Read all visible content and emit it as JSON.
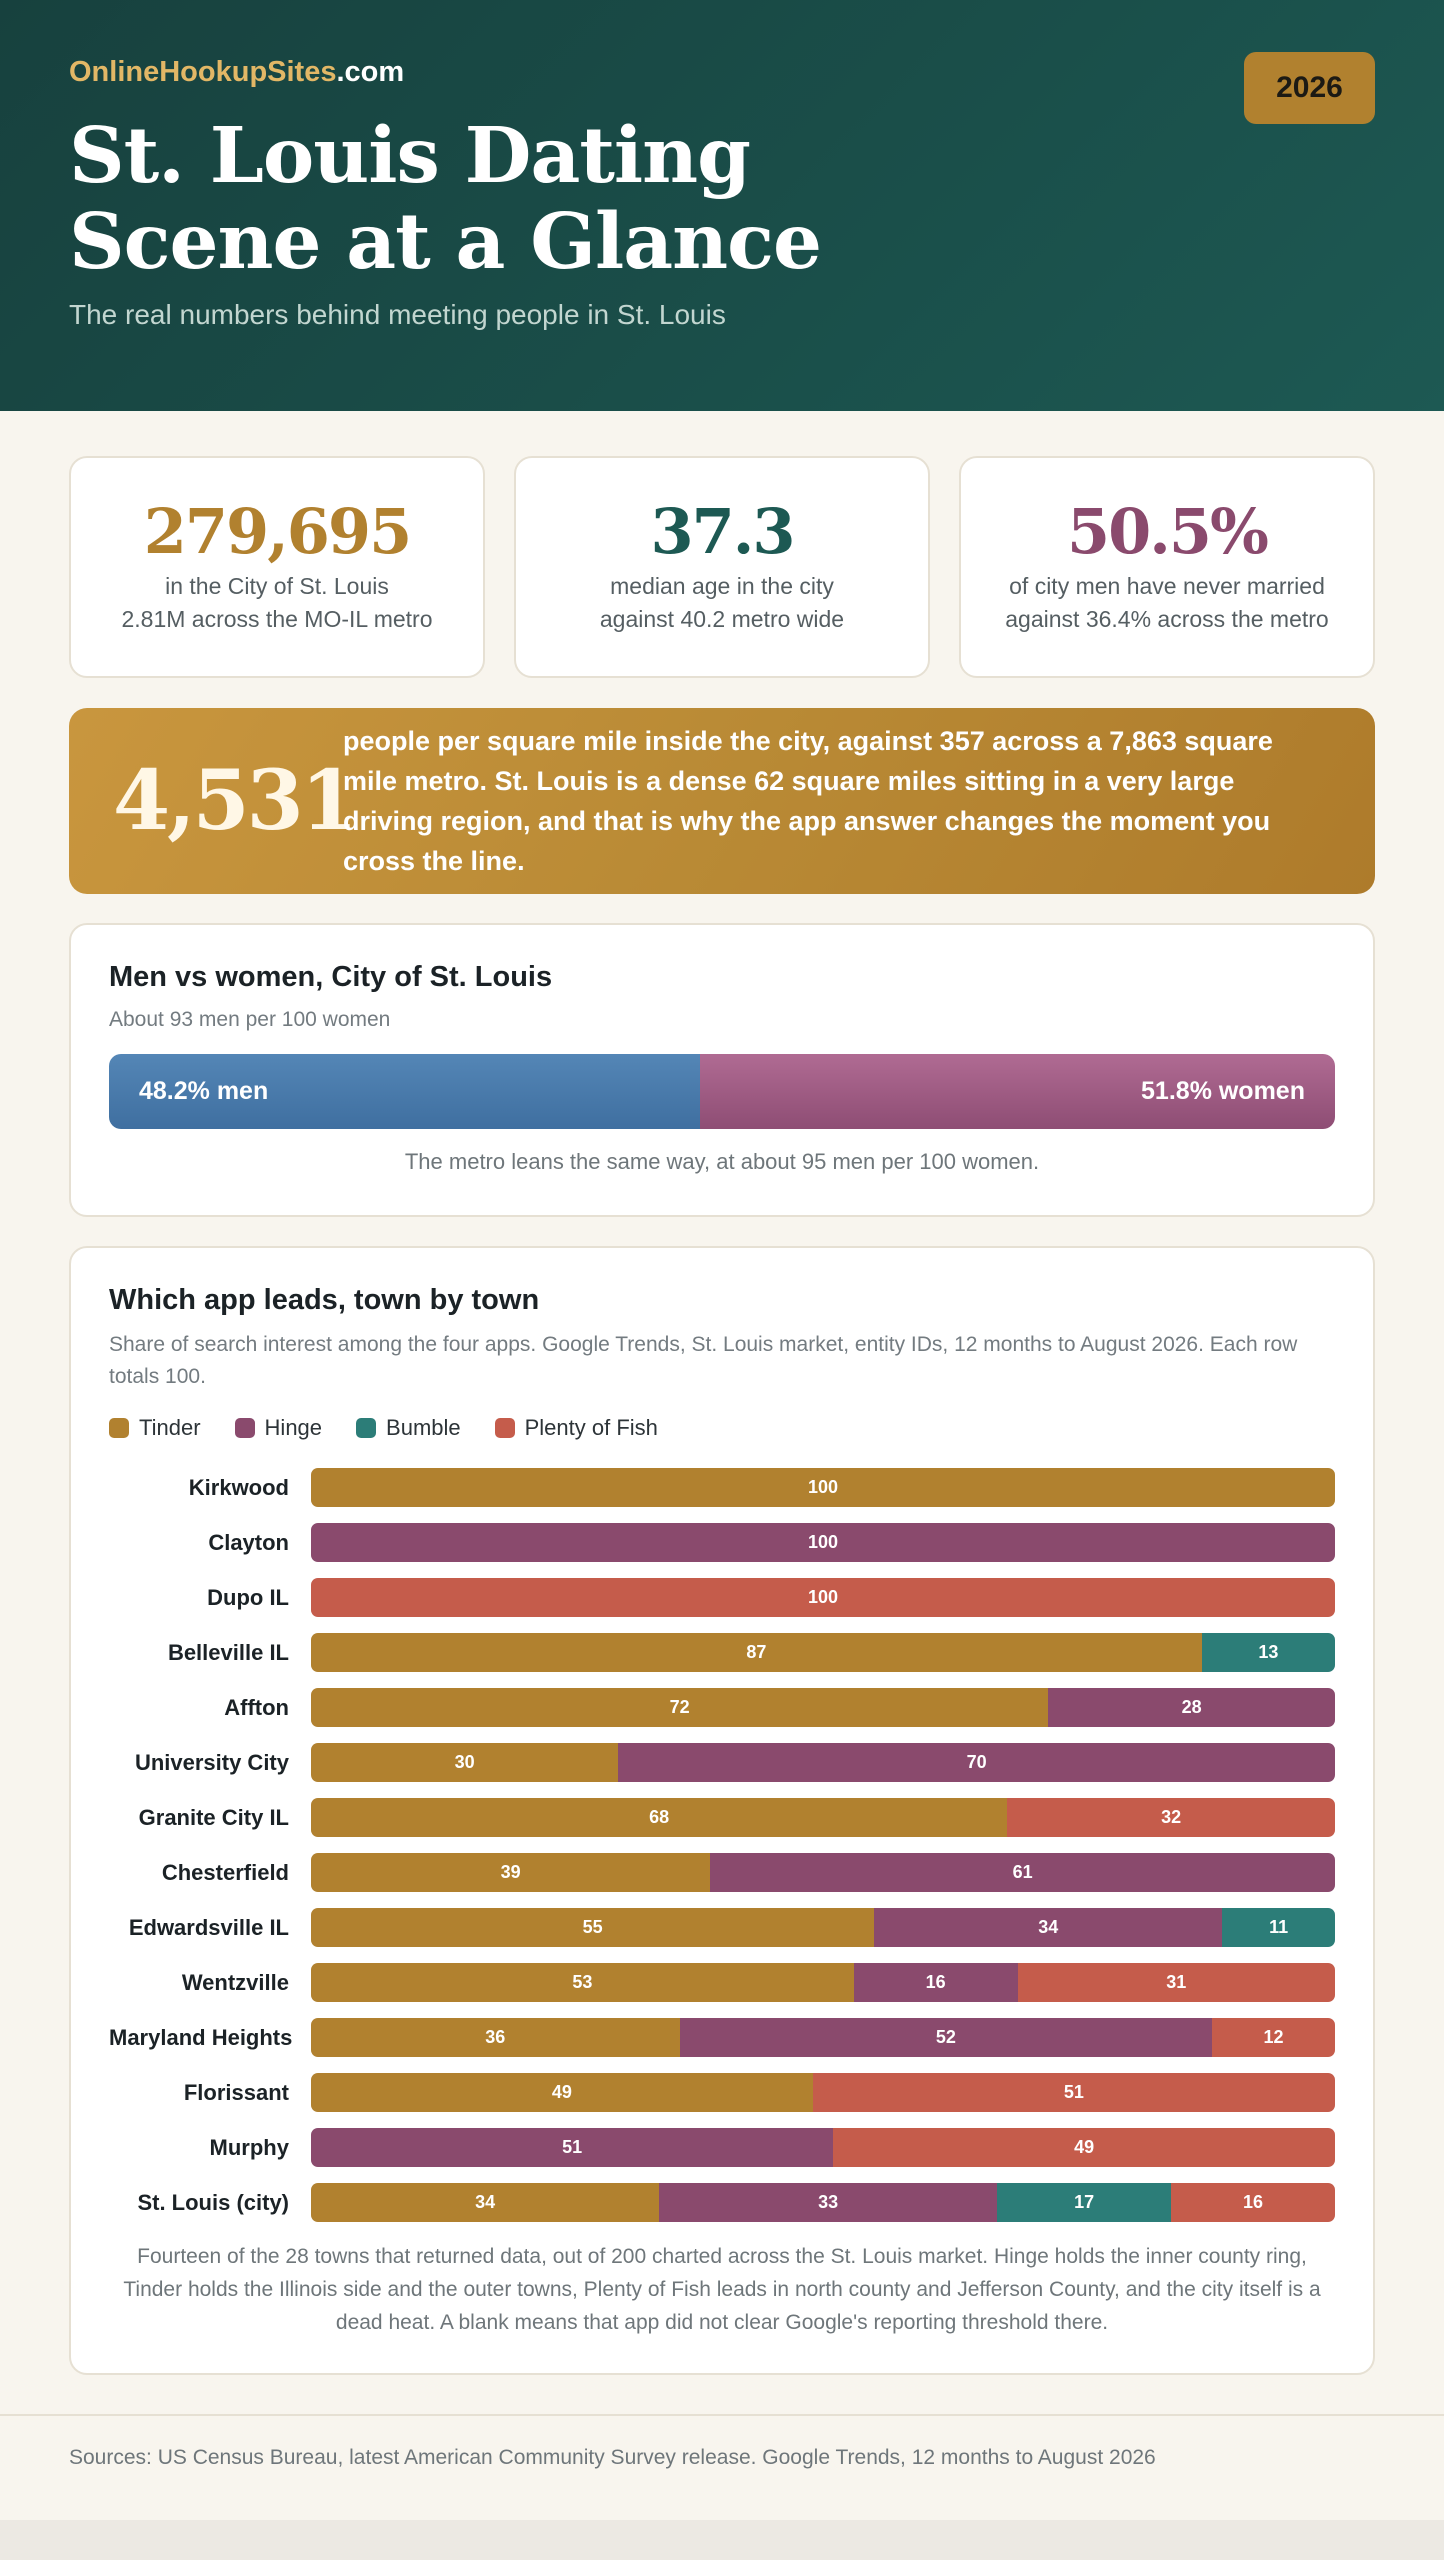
{
  "header": {
    "brand_main": "OnlineHookupSites",
    "brand_suffix": ".com",
    "year": "2026",
    "title_line1": "St. Louis Dating",
    "title_line2": "Scene at a Glance",
    "subtitle": "The real numbers behind meeting people in St. Louis"
  },
  "stats": [
    {
      "value": "279,695",
      "line1": "in the City of St. Louis",
      "line2": "2.81M across the MO-IL metro",
      "color": "#b1812f"
    },
    {
      "value": "37.3",
      "line1": "median age in the city",
      "line2": "against 40.2 metro wide",
      "color": "#1d5953"
    },
    {
      "value": "50.5%",
      "line1": "of city men have never married",
      "line2": "against 36.4% across the metro",
      "color": "#8a4a6d"
    }
  ],
  "density": {
    "value": "4,531",
    "text": "people per square mile inside the city, against 357 across a 7,863 square mile metro. St. Louis is a dense 62 square miles sitting in a very large driving region, and that is why the app answer changes the moment you cross the line."
  },
  "gender": {
    "title": "Men vs women, City of St. Louis",
    "subtitle": "About 93 men per 100 women",
    "men_label": "48.2% men",
    "women_label": "51.8% women",
    "men_share": 48.2,
    "women_share": 51.8,
    "men_color": "#4a7aab",
    "women_color": "#9e5c84",
    "note": "The metro leans the same way, at about 95 men per 100 women."
  },
  "apps": {
    "title": "Which app leads, town by town",
    "subtitle": "Share of search interest among the four apps. Google Trends, St. Louis market, entity IDs, 12 months to August 2026. Each row totals 100.",
    "note": "Fourteen of the 28 towns that returned data, out of 200 charted across the St. Louis market. Hinge holds the inner county ring, Tinder holds the Illinois side and the outer towns, Plenty of Fish leads in north county and Jefferson County, and the city itself is a dead heat. A blank means that app did not clear Google's reporting threshold there."
  },
  "chart_data": {
    "type": "bar",
    "stacked": true,
    "orientation": "horizontal",
    "legend_position": "top-left",
    "categories": [
      "Kirkwood",
      "Clayton",
      "Dupo IL",
      "Belleville IL",
      "Affton",
      "University City",
      "Granite City IL",
      "Chesterfield",
      "Edwardsville IL",
      "Wentzville",
      "Maryland Heights",
      "Florissant",
      "Murphy",
      "St. Louis (city)"
    ],
    "series": [
      {
        "name": "Tinder",
        "color": "#b1812f",
        "values": [
          100,
          0,
          0,
          87,
          72,
          30,
          68,
          39,
          55,
          53,
          36,
          49,
          0,
          34
        ]
      },
      {
        "name": "Hinge",
        "color": "#8a4a6d",
        "values": [
          0,
          100,
          0,
          0,
          28,
          70,
          0,
          61,
          34,
          16,
          52,
          0,
          51,
          33
        ]
      },
      {
        "name": "Bumble",
        "color": "#2c7d78",
        "values": [
          0,
          0,
          0,
          13,
          0,
          0,
          0,
          0,
          11,
          0,
          0,
          0,
          0,
          17
        ]
      },
      {
        "name": "Plenty of Fish",
        "color": "#c55c4b",
        "values": [
          0,
          0,
          100,
          0,
          0,
          0,
          32,
          0,
          0,
          31,
          12,
          51,
          49,
          16
        ]
      }
    ],
    "xlim": [
      0,
      100
    ]
  },
  "footer": {
    "sources": "Sources: US Census Bureau, latest American Community Survey release. Google Trends, 12 months to August 2026"
  }
}
